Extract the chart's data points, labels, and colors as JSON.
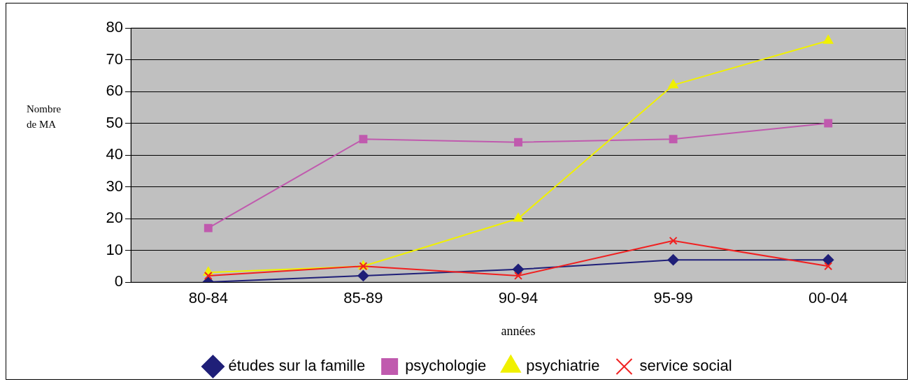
{
  "chart_data": {
    "type": "line",
    "xlabel": "années",
    "ylabel": "Nombre de MA",
    "categories": [
      "80-84",
      "85-89",
      "90-94",
      "95-99",
      "00-04"
    ],
    "series": [
      {
        "name": "études sur la famille",
        "color": "#1f1f78",
        "marker": "diamond",
        "values": [
          0,
          2,
          4,
          7,
          7
        ]
      },
      {
        "name": "psychologie",
        "color": "#c05aae",
        "marker": "square",
        "values": [
          17,
          45,
          44,
          45,
          50
        ]
      },
      {
        "name": "psychiatrie",
        "color": "#f0f000",
        "marker": "triangle",
        "values": [
          3,
          5,
          20,
          62,
          76
        ]
      },
      {
        "name": "service social",
        "color": "#f02020",
        "marker": "cross",
        "values": [
          2,
          5,
          2,
          13,
          5
        ]
      }
    ],
    "ylim": [
      0,
      80
    ],
    "yticks": [
      0,
      10,
      20,
      30,
      40,
      50,
      60,
      70,
      80
    ],
    "grid": "y",
    "legend": "bottom",
    "line_style": "solid"
  }
}
